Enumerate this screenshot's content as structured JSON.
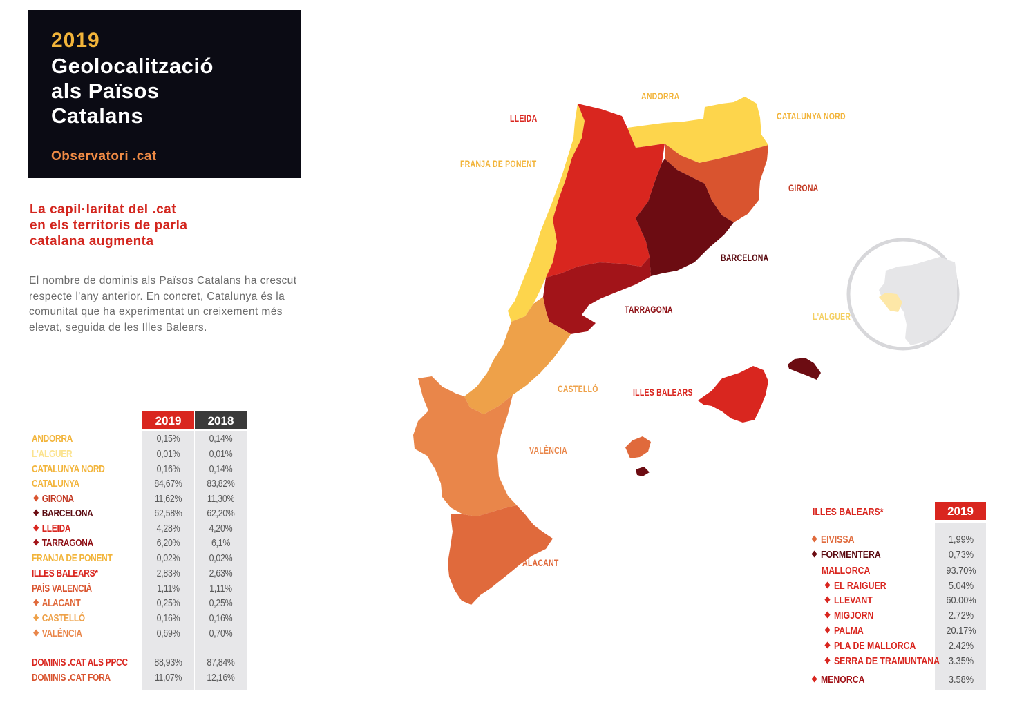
{
  "header": {
    "year": "2019",
    "title": "Geolocalització\nals Països\nCatalans",
    "brand": "Observatori .cat"
  },
  "subheading": "La capil·laritat del .cat\nen els territoris de parla\ncatalana augmenta",
  "intro": "El nombre de dominis als Països Catalans ha crescut respecte l'any anterior. En concret, Catalunya és la comunitat que ha experimentat un creixement més elevat, seguida de les Illes Balears.",
  "colors": {
    "red": "#d9261f",
    "dark_red": "#6c0c12",
    "crimson": "#a21419",
    "orange_red": "#d9542f",
    "orange": "#e9864a",
    "light_orange": "#eea149",
    "yellow": "#fdd54c",
    "pale_yellow": "#fde7a7",
    "grey_cell": "#e7e7e9",
    "header_dark": "#3a3a3a"
  },
  "map_labels": {
    "andorra": "ANDORRA",
    "lleida": "LLEIDA",
    "catalunya_nord": "CATALUNYA NORD",
    "franja": "FRANJA DE PONENT",
    "girona": "GIRONA",
    "barcelona": "BARCELONA",
    "tarragona": "TARRAGONA",
    "alguer": "L'ALGUER",
    "castello": "CASTELLÓ",
    "illes_balears": "ILLES BALEARS",
    "valencia": "VALÈNCIA",
    "alacant": "ALACANT"
  },
  "main_table": {
    "col_2019": "2019",
    "col_2018": "2018",
    "rows": [
      {
        "label": "ANDORRA",
        "v2019": "0,15%",
        "v2018": "0,14%",
        "color": "#f2b43a",
        "bullet": ""
      },
      {
        "label": "L'ALGUER",
        "v2019": "0,01%",
        "v2018": "0,01%",
        "color": "#fbe38f",
        "bullet": ""
      },
      {
        "label": "CATALUNYA NORD",
        "v2019": "0,16%",
        "v2018": "0,14%",
        "color": "#f2b43a",
        "bullet": ""
      },
      {
        "label": "CATALUNYA",
        "v2019": "84,67%",
        "v2018": "83,82%",
        "color": "#f2b43a",
        "bullet": ""
      },
      {
        "label": "GIRONA",
        "v2019": "11,62%",
        "v2018": "11,30%",
        "color": "#c33a24",
        "bullet": "#d9542f"
      },
      {
        "label": "BARCELONA",
        "v2019": "62,58%",
        "v2018": "62,20%",
        "color": "#5a0a10",
        "bullet": "#6c0c12"
      },
      {
        "label": "LLEIDA",
        "v2019": "4,28%",
        "v2018": "4,20%",
        "color": "#d9261f",
        "bullet": "#d9261f"
      },
      {
        "label": "TARRAGONA",
        "v2019": "6,20%",
        "v2018": "6,1%",
        "color": "#8e1015",
        "bullet": "#a21419"
      },
      {
        "label": "FRANJA DE PONENT",
        "v2019": "0,02%",
        "v2018": "0,02%",
        "color": "#f2b43a",
        "bullet": ""
      },
      {
        "label": "ILLES BALEARS*",
        "v2019": "2,83%",
        "v2018": "2,63%",
        "color": "#d9261f",
        "bullet": ""
      },
      {
        "label": "PAÍS VALENCIÀ",
        "v2019": "1,11%",
        "v2018": "1,11%",
        "color": "#d9542f",
        "bullet": ""
      },
      {
        "label": "ALACANT",
        "v2019": "0,25%",
        "v2018": "0,25%",
        "color": "#e06a3c",
        "bullet": "#e06a3c"
      },
      {
        "label": "CASTELLÓ",
        "v2019": "0,16%",
        "v2018": "0,16%",
        "color": "#eea149",
        "bullet": "#eea149"
      },
      {
        "label": "VALÈNCIA",
        "v2019": "0,69%",
        "v2018": "0,70%",
        "color": "#e9864a",
        "bullet": "#e9864a"
      },
      {
        "label": "DOMINIS .CAT ALS PPCC",
        "v2019": "88,93%",
        "v2018": "87,84%",
        "color": "#d9261f",
        "bullet": ""
      },
      {
        "label": "DOMINIS .CAT FORA",
        "v2019": "11,07%",
        "v2018": "12,16%",
        "color": "#d9542f",
        "bullet": ""
      }
    ]
  },
  "balears_table": {
    "title": "ILLES BALEARS*",
    "col_2019": "2019",
    "rows": [
      {
        "label": "EIVISSA",
        "value": "1,99%",
        "color": "#e06a3c",
        "bullet": "#e06a3c"
      },
      {
        "label": "FORMENTERA",
        "value": "0,73%",
        "color": "#5a0a10",
        "bullet": "#6c0c12"
      },
      {
        "label": "MALLORCA",
        "value": "93.70%",
        "color": "#d9261f",
        "bullet": ""
      },
      {
        "label": "EL RAIGUER",
        "value": "5.04%",
        "color": "#d9261f",
        "bullet": "#d9261f"
      },
      {
        "label": "LLEVANT",
        "value": "60.00%",
        "color": "#d9261f",
        "bullet": "#d9261f"
      },
      {
        "label": "MIGJORN",
        "value": "2.72%",
        "color": "#d9261f",
        "bullet": "#d9261f"
      },
      {
        "label": "PALMA",
        "value": "20.17%",
        "color": "#d9261f",
        "bullet": "#d9261f"
      },
      {
        "label": "PLA DE MALLORCA",
        "value": "2.42%",
        "color": "#d9261f",
        "bullet": "#d9261f"
      },
      {
        "label": "SERRA DE TRAMUNTANA",
        "value": "3.35%",
        "color": "#d9261f",
        "bullet": "#d9261f"
      },
      {
        "label": "MENORCA",
        "value": "3.58%",
        "color": "#a21419",
        "bullet": "#d9261f"
      }
    ]
  }
}
